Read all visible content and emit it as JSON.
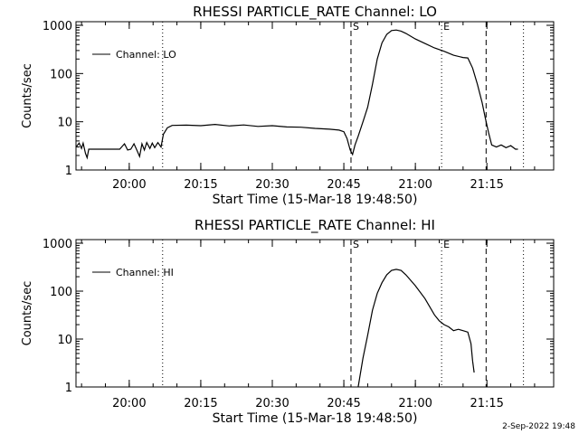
{
  "footer_stamp": "2-Sep-2022 19:48",
  "chart_data": [
    {
      "type": "line",
      "title": "RHESSI PARTICLE_RATE Channel: LO",
      "xlabel": "Start Time (15-Mar-18 19:48:50)",
      "ylabel": "Counts/sec",
      "yscale": "log",
      "ylim": [
        1,
        1000
      ],
      "xlim": [
        "19:48:50",
        "21:29:00"
      ],
      "grid": false,
      "legend": "top-left",
      "xticks": [
        "20:00",
        "20:15",
        "20:30",
        "20:45",
        "21:00",
        "21:15"
      ],
      "yticks": [
        "1",
        "10",
        "100",
        "1000"
      ],
      "line_color": "#000000",
      "markers": [
        {
          "type": "dotted",
          "time": "20:07:00",
          "label": ""
        },
        {
          "type": "dashed",
          "time": "20:46:30",
          "label": "S"
        },
        {
          "type": "dotted",
          "time": "21:05:30",
          "label": "E"
        },
        {
          "type": "dashed",
          "time": "21:14:50",
          "label": ""
        },
        {
          "type": "dotted",
          "time": "21:22:40",
          "label": ""
        }
      ],
      "series": [
        {
          "name": "Channel: LO",
          "points": [
            [
              "19:48:50",
              3.0
            ],
            [
              "19:49:30",
              3.6
            ],
            [
              "19:50:00",
              2.8
            ],
            [
              "19:50:20",
              3.6
            ],
            [
              "19:50:50",
              2.2
            ],
            [
              "19:51:10",
              1.8
            ],
            [
              "19:51:30",
              2.7
            ],
            [
              "19:52:30",
              2.7
            ],
            [
              "19:54:00",
              2.7
            ],
            [
              "19:56:00",
              2.7
            ],
            [
              "19:58:00",
              2.7
            ],
            [
              "19:59:00",
              3.5
            ],
            [
              "19:59:40",
              2.6
            ],
            [
              "20:00:20",
              2.7
            ],
            [
              "20:01:00",
              3.5
            ],
            [
              "20:01:40",
              2.5
            ],
            [
              "20:02:10",
              1.9
            ],
            [
              "20:02:40",
              3.5
            ],
            [
              "20:03:10",
              2.6
            ],
            [
              "20:03:40",
              3.7
            ],
            [
              "20:04:20",
              2.8
            ],
            [
              "20:04:50",
              3.6
            ],
            [
              "20:05:20",
              2.9
            ],
            [
              "20:06:00",
              3.7
            ],
            [
              "20:06:40",
              3.0
            ],
            [
              "20:07:10",
              5.5
            ],
            [
              "20:08:00",
              7.5
            ],
            [
              "20:09:00",
              8.4
            ],
            [
              "20:12:00",
              8.5
            ],
            [
              "20:15:00",
              8.3
            ],
            [
              "20:18:00",
              8.8
            ],
            [
              "20:21:00",
              8.2
            ],
            [
              "20:24:00",
              8.6
            ],
            [
              "20:27:00",
              8.0
            ],
            [
              "20:30:00",
              8.3
            ],
            [
              "20:33:00",
              7.8
            ],
            [
              "20:36:00",
              7.7
            ],
            [
              "20:39:00",
              7.3
            ],
            [
              "20:42:00",
              7.0
            ],
            [
              "20:44:00",
              6.7
            ],
            [
              "20:45:00",
              6.2
            ],
            [
              "20:45:40",
              4.5
            ],
            [
              "20:46:20",
              2.6
            ],
            [
              "20:46:50",
              2.1
            ],
            [
              "20:47:20",
              3.3
            ],
            [
              "20:48:00",
              5.0
            ],
            [
              "20:49:00",
              10
            ],
            [
              "20:50:00",
              20
            ],
            [
              "20:51:00",
              60
            ],
            [
              "20:52:00",
              200
            ],
            [
              "20:53:00",
              430
            ],
            [
              "20:54:00",
              650
            ],
            [
              "20:55:00",
              780
            ],
            [
              "20:56:00",
              800
            ],
            [
              "20:57:00",
              760
            ],
            [
              "20:58:00",
              680
            ],
            [
              "21:00:00",
              520
            ],
            [
              "21:02:00",
              420
            ],
            [
              "21:04:00",
              340
            ],
            [
              "21:06:00",
              290
            ],
            [
              "21:08:00",
              240
            ],
            [
              "21:10:00",
              215
            ],
            [
              "21:11:00",
              210
            ],
            [
              "21:12:00",
              130
            ],
            [
              "21:13:00",
              60
            ],
            [
              "21:14:00",
              25
            ],
            [
              "21:14:40",
              12
            ],
            [
              "21:15:20",
              6.0
            ],
            [
              "21:16:00",
              3.3
            ],
            [
              "21:17:00",
              3.0
            ],
            [
              "21:18:00",
              3.3
            ],
            [
              "21:19:00",
              2.9
            ],
            [
              "21:20:00",
              3.2
            ],
            [
              "21:21:00",
              2.7
            ],
            [
              "21:21:30",
              2.7
            ]
          ]
        }
      ]
    },
    {
      "type": "line",
      "title": "RHESSI PARTICLE_RATE Channel: HI",
      "xlabel": "Start Time (15-Mar-18 19:48:50)",
      "ylabel": "Counts/sec",
      "yscale": "log",
      "ylim": [
        1,
        1000
      ],
      "xlim": [
        "19:48:50",
        "21:29:00"
      ],
      "grid": false,
      "legend": "top-left",
      "xticks": [
        "20:00",
        "20:15",
        "20:30",
        "20:45",
        "21:00",
        "21:15"
      ],
      "yticks": [
        "1",
        "10",
        "100",
        "1000"
      ],
      "line_color": "#000000",
      "markers": [
        {
          "type": "dotted",
          "time": "20:07:00",
          "label": ""
        },
        {
          "type": "dashed",
          "time": "20:46:30",
          "label": "S"
        },
        {
          "type": "dotted",
          "time": "21:05:30",
          "label": "E"
        },
        {
          "type": "dashed",
          "time": "21:14:50",
          "label": ""
        },
        {
          "type": "dotted",
          "time": "21:22:40",
          "label": ""
        }
      ],
      "series": [
        {
          "name": "Channel: HI",
          "points": [
            [
              "20:48:00",
              1.0
            ],
            [
              "20:49:00",
              4.0
            ],
            [
              "20:50:00",
              12
            ],
            [
              "20:51:00",
              40
            ],
            [
              "20:52:00",
              90
            ],
            [
              "20:53:00",
              150
            ],
            [
              "20:54:00",
              220
            ],
            [
              "20:55:00",
              270
            ],
            [
              "20:56:00",
              285
            ],
            [
              "20:57:00",
              270
            ],
            [
              "20:58:00",
              220
            ],
            [
              "21:00:00",
              130
            ],
            [
              "21:02:00",
              70
            ],
            [
              "21:04:00",
              32
            ],
            [
              "21:05:00",
              24
            ],
            [
              "21:06:00",
              20
            ],
            [
              "21:07:00",
              18
            ],
            [
              "21:08:00",
              15
            ],
            [
              "21:09:00",
              16
            ],
            [
              "21:10:00",
              15
            ],
            [
              "21:11:00",
              14
            ],
            [
              "21:11:40",
              8
            ],
            [
              "21:12:00",
              3.5
            ],
            [
              "21:12:20",
              2.0
            ]
          ]
        }
      ]
    }
  ]
}
